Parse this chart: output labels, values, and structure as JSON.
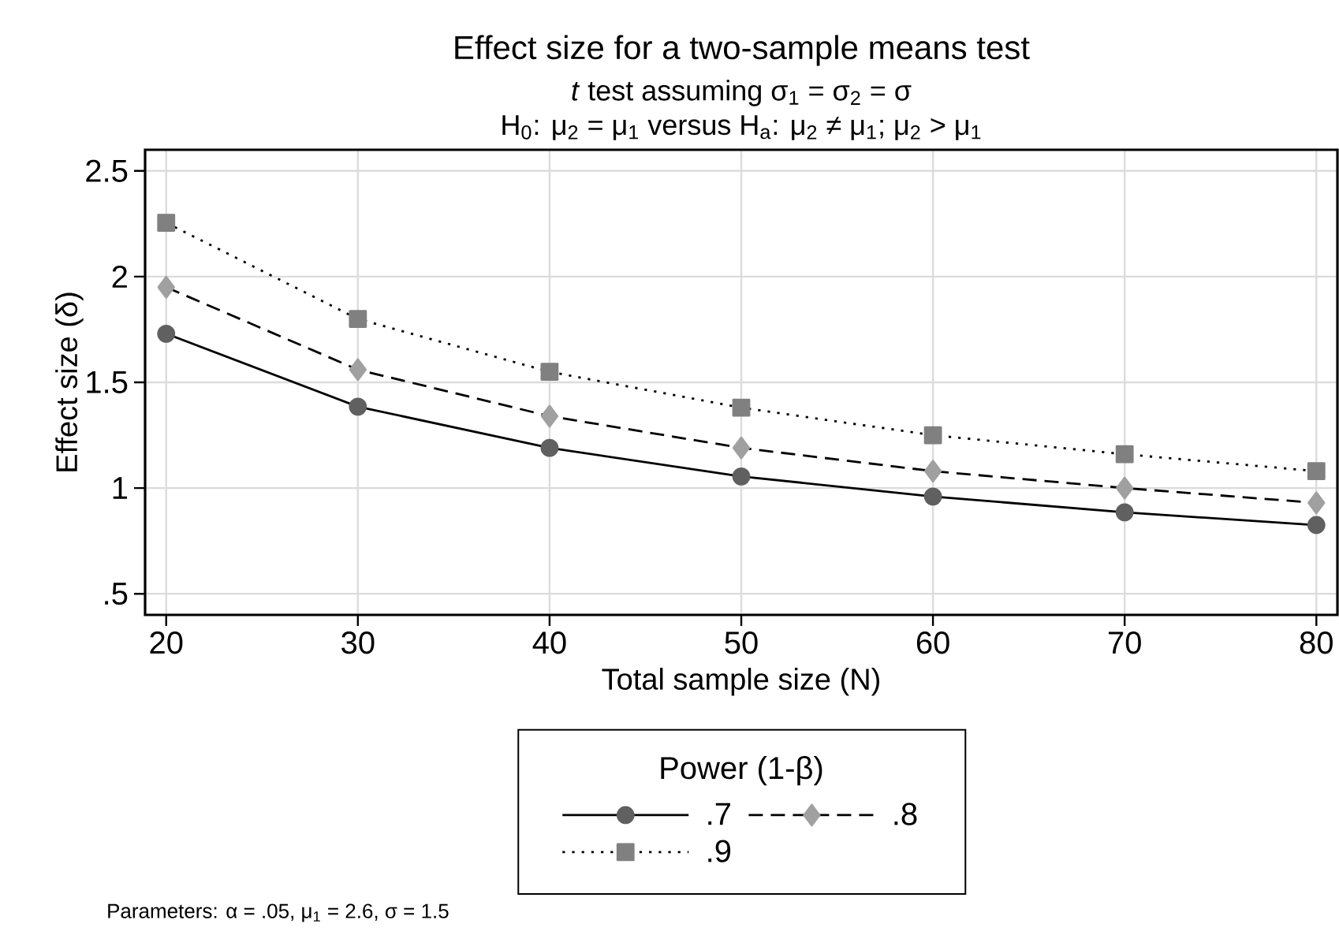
{
  "chart_data": {
    "type": "line",
    "title": "Effect size for a two-sample means test",
    "subtitle": "*t* test assuming σ$_{1}$ = σ$_{2}$ = σ",
    "annotations": [
      "H$_{0}$: μ$_{2}$ = μ$_{1}$  versus  H$_{a}$: μ$_{2}$ ≠ μ$_{1}$; μ$_{2}$ > μ$_{1}$",
      "Parameters: α = .05, μ$_{1}$ = 2.6, σ = 1.5"
    ],
    "xlabel": "Total sample size (N)",
    "ylabel": "Effect size (δ)",
    "legend_title": "Power (1-β)",
    "x": [
      20,
      30,
      40,
      50,
      60,
      70,
      80
    ],
    "series": [
      {
        "name": ".7",
        "color": "#606060",
        "marker": "circle",
        "line_style": "solid",
        "values": [
          1.73,
          1.385,
          1.19,
          1.055,
          0.96,
          0.885,
          0.825
        ]
      },
      {
        "name": ".8",
        "color": "#a0a0a0",
        "marker": "diamond",
        "line_style": "dashed",
        "values": [
          1.95,
          1.56,
          1.34,
          1.19,
          1.08,
          1.0,
          0.93
        ]
      },
      {
        "name": ".9",
        "color": "#808080",
        "marker": "square",
        "line_style": "dotted",
        "values": [
          2.255,
          1.8,
          1.55,
          1.38,
          1.25,
          1.16,
          1.08
        ]
      }
    ],
    "xlim": [
      18.9,
      81.1
    ],
    "ylim": [
      0.4,
      2.6
    ],
    "xticks": [
      20,
      30,
      40,
      50,
      60,
      70,
      80
    ],
    "yticks": [
      {
        "value": 0.5,
        "label": ".5"
      },
      1,
      {
        "value": 1.5,
        "label": "1.5"
      },
      2,
      {
        "value": 2.5,
        "label": "2.5"
      }
    ],
    "grid": true,
    "legend": "bottom"
  }
}
